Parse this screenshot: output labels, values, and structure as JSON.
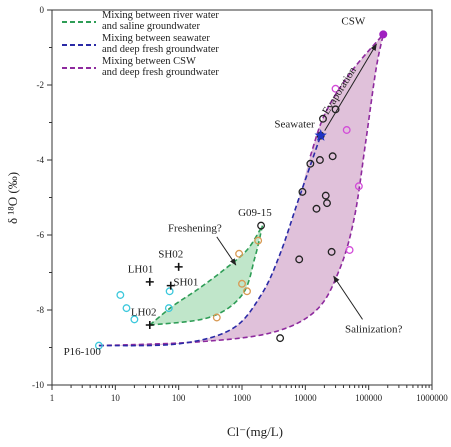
{
  "chart_data": {
    "type": "scatter",
    "title": "",
    "xlabel": "Cl⁻(mg/L)",
    "ylabel": "δ ¹⁸O (‰)",
    "xscale": "log",
    "xlim": [
      1,
      1000000
    ],
    "ylim": [
      -10,
      0
    ],
    "x_ticks": [
      {
        "v": 1,
        "label": "1"
      },
      {
        "v": 10,
        "label": "10"
      },
      {
        "v": 100,
        "label": "100"
      },
      {
        "v": 1000,
        "label": "1000"
      },
      {
        "v": 10000,
        "label": "10000"
      },
      {
        "v": 100000,
        "label": "100000"
      },
      {
        "v": 1000000,
        "label": "1000000"
      }
    ],
    "y_ticks": [
      {
        "v": 0,
        "label": "0"
      },
      {
        "v": -2,
        "label": "-2"
      },
      {
        "v": -4,
        "label": "-4"
      },
      {
        "v": -6,
        "label": "-6"
      },
      {
        "v": -8,
        "label": "-8"
      },
      {
        "v": -10,
        "label": "-10"
      }
    ],
    "grid": false,
    "legend_position": "top-left",
    "legend": [
      {
        "label": [
          "Mixing between river water",
          "and saline groundwater"
        ],
        "color": "#2e9d56"
      },
      {
        "label": [
          "Mixing between seawater",
          "and deep fresh groundwater"
        ],
        "color": "#2a2aa6"
      },
      {
        "label": [
          "Mixing between CSW",
          "and deep fresh groundwater"
        ],
        "color": "#8e2a9e"
      }
    ],
    "colors": {
      "green_line": "#2e9d56",
      "green_fill": "#b9e3c4",
      "blue_line": "#2a2aa6",
      "purple_line": "#8e2a9e",
      "purple_fill": "#dbb6d3",
      "seawater_star": "#1f33c4",
      "csw_point": "#a020c0",
      "cyan_points": "#3cc8dc",
      "orange_points": "#d89a54",
      "black_points": "#222222",
      "magenta_points": "#d24ad8"
    },
    "series": [
      {
        "group": "cyan",
        "points": [
          [
            5.5,
            -8.95
          ],
          [
            12,
            -7.6
          ],
          [
            15,
            -7.95
          ],
          [
            20,
            -8.25
          ],
          [
            70,
            -7.95
          ],
          [
            72,
            -7.5
          ]
        ]
      },
      {
        "group": "orange",
        "points": [
          [
            400,
            -8.2
          ],
          [
            900,
            -6.5
          ],
          [
            1000,
            -7.3
          ],
          [
            1200,
            -7.5
          ],
          [
            1800,
            -6.15
          ]
        ]
      },
      {
        "group": "black",
        "points": [
          [
            4000,
            -8.75
          ],
          [
            8000,
            -6.65
          ],
          [
            9000,
            -4.85
          ],
          [
            12000,
            -4.1
          ],
          [
            15000,
            -5.3
          ],
          [
            17000,
            -4.0
          ],
          [
            17500,
            -3.35
          ],
          [
            19000,
            -2.9
          ],
          [
            21000,
            -4.95
          ],
          [
            22000,
            -5.15
          ],
          [
            26000,
            -6.45
          ],
          [
            27000,
            -3.9
          ],
          [
            30000,
            -2.65
          ],
          [
            2000,
            -5.75
          ]
        ]
      },
      {
        "group": "magenta",
        "points": [
          [
            30000,
            -2.1
          ],
          [
            45000,
            -3.2
          ],
          [
            50000,
            -6.4
          ],
          [
            70000,
            -4.7
          ]
        ]
      },
      {
        "group": "cross",
        "points": [
          [
            35,
            -7.25
          ],
          [
            100,
            -6.85
          ],
          [
            75,
            -7.35
          ],
          [
            35,
            -8.4
          ]
        ]
      }
    ],
    "mixing_lines": {
      "green_upper": [
        [
          35,
          -8.4
        ],
        [
          80,
          -7.9
        ],
        [
          200,
          -7.45
        ],
        [
          500,
          -6.95
        ],
        [
          1200,
          -6.4
        ],
        [
          2100,
          -5.75
        ]
      ],
      "green_lower": [
        [
          35,
          -8.4
        ],
        [
          300,
          -8.2
        ],
        [
          1000,
          -7.6
        ],
        [
          1600,
          -6.6
        ],
        [
          2100,
          -5.75
        ]
      ],
      "blue_line": [
        [
          5.5,
          -8.95
        ],
        [
          100,
          -8.9
        ],
        [
          700,
          -8.5
        ],
        [
          2000,
          -7.6
        ],
        [
          4000,
          -6.5
        ],
        [
          8000,
          -5.0
        ],
        [
          17500,
          -3.35
        ]
      ],
      "purple_left": [
        [
          5.5,
          -8.95
        ],
        [
          100,
          -8.9
        ],
        [
          700,
          -8.5
        ],
        [
          2000,
          -7.6
        ],
        [
          4000,
          -6.5
        ],
        [
          8000,
          -5.0
        ],
        [
          12000,
          -3.9
        ],
        [
          20000,
          -2.8
        ],
        [
          50000,
          -1.7
        ],
        [
          170000,
          -0.65
        ]
      ],
      "purple_right": [
        [
          5.5,
          -8.95
        ],
        [
          200,
          -8.85
        ],
        [
          3000,
          -8.6
        ],
        [
          15000,
          -8.0
        ],
        [
          35000,
          -6.9
        ],
        [
          60000,
          -5.5
        ],
        [
          90000,
          -3.5
        ],
        [
          130000,
          -1.6
        ],
        [
          170000,
          -0.65
        ]
      ]
    },
    "evaporation_arrow": {
      "from": [
        17500,
        -3.35
      ],
      "to": [
        165000,
        -0.75
      ]
    },
    "annotations": [
      {
        "id": "csw",
        "text": "CSW",
        "x": 170000,
        "y": -0.65,
        "anchor": "end",
        "dx": -18,
        "dy": -10
      },
      {
        "id": "seawater",
        "text": "Seawater",
        "x": 17500,
        "y": -3.35,
        "anchor": "end",
        "dx": -6,
        "dy": -8
      },
      {
        "id": "evaporation",
        "text": "Evaporation",
        "x": 38000,
        "y": -2.2,
        "anchor": "middle",
        "rotate": -58
      },
      {
        "id": "freshening",
        "text": "Freshening?",
        "x": 180,
        "y": -5.9,
        "anchor": "middle"
      },
      {
        "id": "g0915",
        "text": "G09-15",
        "x": 1600,
        "y": -5.55,
        "anchor": "middle",
        "dy": -2
      },
      {
        "id": "sh02",
        "text": "SH02",
        "x": 75,
        "y": -6.6,
        "anchor": "middle"
      },
      {
        "id": "lh01",
        "text": "LH01",
        "x": 25,
        "y": -7.0,
        "anchor": "middle"
      },
      {
        "id": "sh01",
        "text": "SH01",
        "x": 130,
        "y": -7.35,
        "anchor": "middle"
      },
      {
        "id": "lh02",
        "text": "LH02",
        "x": 28,
        "y": -8.15,
        "anchor": "middle"
      },
      {
        "id": "p16100",
        "text": "P16-100",
        "x": 3,
        "y": -9.2,
        "anchor": "middle"
      },
      {
        "id": "salinization",
        "text": "Salinization?",
        "x": 120000,
        "y": -8.6,
        "anchor": "middle"
      }
    ],
    "annotation_arrows": [
      {
        "id": "freshening-arrow",
        "from": [
          400,
          -6.05
        ],
        "to": [
          800,
          -6.8
        ]
      },
      {
        "id": "salinization-arrow",
        "from": [
          80000,
          -8.25
        ],
        "to": [
          28000,
          -7.1
        ]
      }
    ]
  }
}
